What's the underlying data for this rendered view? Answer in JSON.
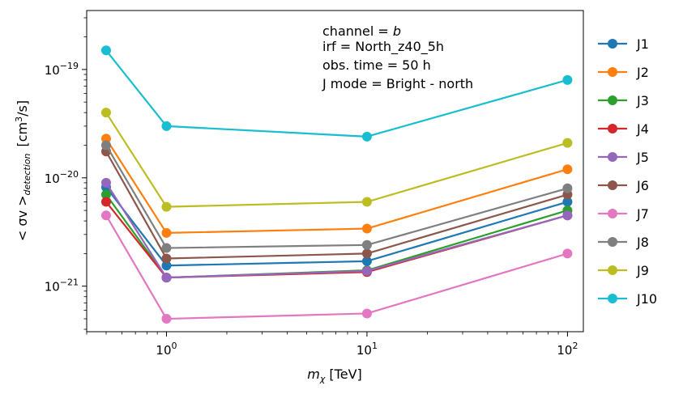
{
  "chart_data": {
    "type": "line",
    "xscale": "log",
    "yscale": "log",
    "xlabel": {
      "main": "m",
      "sub": "χ",
      "rest": " [TeV]"
    },
    "ylabel": {
      "main": "< σv >",
      "sub": "detection",
      "unit_pre": "[cm",
      "unit_sup": "3",
      "unit_post": "/s]"
    },
    "xlim": [
      0.4,
      120
    ],
    "ylim": [
      3.8e-22,
      3.5e-19
    ],
    "x_ticks": [
      {
        "value": 1,
        "base": "10",
        "exp": "0"
      },
      {
        "value": 10,
        "base": "10",
        "exp": "1"
      },
      {
        "value": 100,
        "base": "10",
        "exp": "2"
      }
    ],
    "y_ticks": [
      {
        "value": 1e-21,
        "base": "10",
        "exp": "−21"
      },
      {
        "value": 1e-20,
        "base": "10",
        "exp": "−20"
      },
      {
        "value": 1e-19,
        "base": "10",
        "exp": "−19"
      }
    ],
    "annotations": {
      "channel_prefix": "channel = ",
      "channel_value": "b",
      "irf": "irf = North_z40_5h",
      "obs_time": "obs. time = 50 h",
      "jmode": " J mode = Bright - north"
    },
    "legend_position": "outside-right",
    "x": [
      0.5,
      1,
      10,
      100
    ],
    "series": [
      {
        "name": "J1",
        "color": "#1f77b4",
        "values": [
          8.2e-21,
          1.55e-21,
          1.7e-21,
          6e-21
        ]
      },
      {
        "name": "J2",
        "color": "#ff7f0e",
        "values": [
          2.3e-20,
          3.1e-21,
          3.4e-21,
          1.2e-20
        ]
      },
      {
        "name": "J3",
        "color": "#2ca02c",
        "values": [
          7e-21,
          1.2e-21,
          1.4e-21,
          5e-21
        ]
      },
      {
        "name": "J4",
        "color": "#d62728",
        "values": [
          6e-21,
          1.2e-21,
          1.35e-21,
          4.5e-21
        ]
      },
      {
        "name": "J5",
        "color": "#9467bd",
        "values": [
          9e-21,
          1.2e-21,
          1.38e-21,
          4.5e-21
        ]
      },
      {
        "name": "J6",
        "color": "#8c564b",
        "values": [
          1.75e-20,
          1.8e-21,
          2e-21,
          7e-21
        ]
      },
      {
        "name": "J7",
        "color": "#e377c2",
        "values": [
          4.5e-21,
          5e-22,
          5.6e-22,
          2e-21
        ]
      },
      {
        "name": "J8",
        "color": "#7f7f7f",
        "values": [
          2e-20,
          2.25e-21,
          2.4e-21,
          8e-21
        ]
      },
      {
        "name": "J9",
        "color": "#bcbd22",
        "values": [
          4e-20,
          5.4e-21,
          6e-21,
          2.1e-20
        ]
      },
      {
        "name": "J10",
        "color": "#17becf",
        "values": [
          1.5e-19,
          3e-20,
          2.4e-20,
          8e-20
        ]
      }
    ]
  }
}
